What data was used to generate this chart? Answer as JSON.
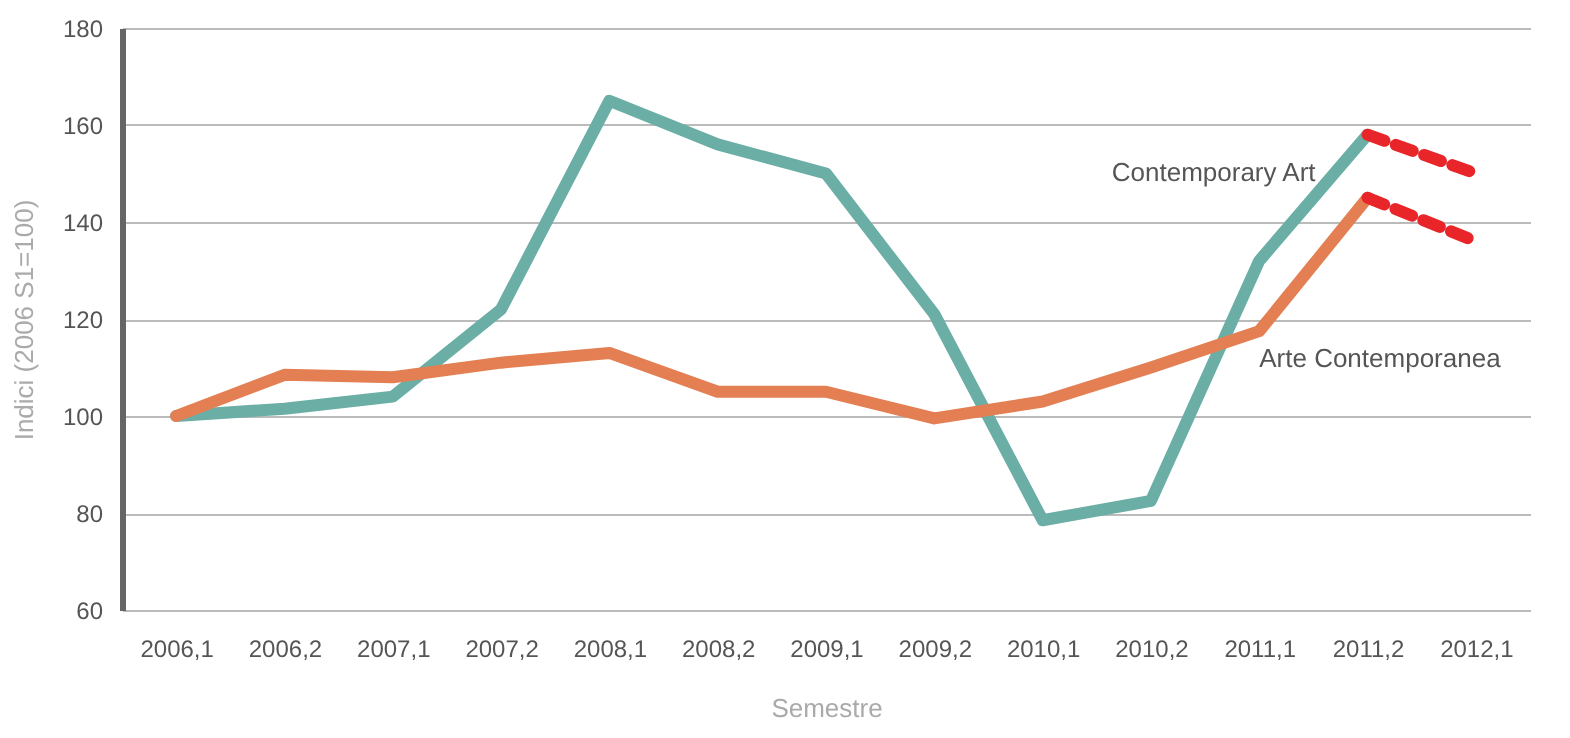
{
  "chart_data": {
    "type": "line",
    "xlabel": "Semestre",
    "ylabel": "Indici (2006 S1=100)",
    "categories": [
      "2006,1",
      "2006,2",
      "2007,1",
      "2007,2",
      "2008,1",
      "2008,2",
      "2009,1",
      "2009,2",
      "2010,1",
      "2010,2",
      "2011,1",
      "2011,2",
      "2012,1"
    ],
    "series": [
      {
        "name": "Contemporary Art",
        "color": "#6aaea6",
        "line_style": "solid",
        "values": [
          100,
          101.5,
          104,
          122,
          165,
          156,
          150,
          121,
          78.5,
          82.5,
          132,
          158,
          null
        ]
      },
      {
        "name": "Arte Contemporanea",
        "color": "#e37f52",
        "line_style": "solid",
        "values": [
          100,
          108.5,
          108,
          111,
          113,
          105,
          105,
          99.5,
          103,
          110,
          117.5,
          145,
          null
        ]
      },
      {
        "color": "#e8262a",
        "line_style": "dashed",
        "values": [
          null,
          null,
          null,
          null,
          null,
          null,
          null,
          null,
          null,
          null,
          null,
          158,
          150
        ]
      },
      {
        "color": "#e8262a",
        "line_style": "dashed",
        "values": [
          null,
          null,
          null,
          null,
          null,
          null,
          null,
          null,
          null,
          null,
          null,
          145,
          136
        ]
      }
    ],
    "ylim": [
      60,
      180
    ],
    "yticks": [
      60,
      80,
      100,
      120,
      140,
      160,
      180
    ],
    "grid": "y",
    "marker": "none"
  }
}
